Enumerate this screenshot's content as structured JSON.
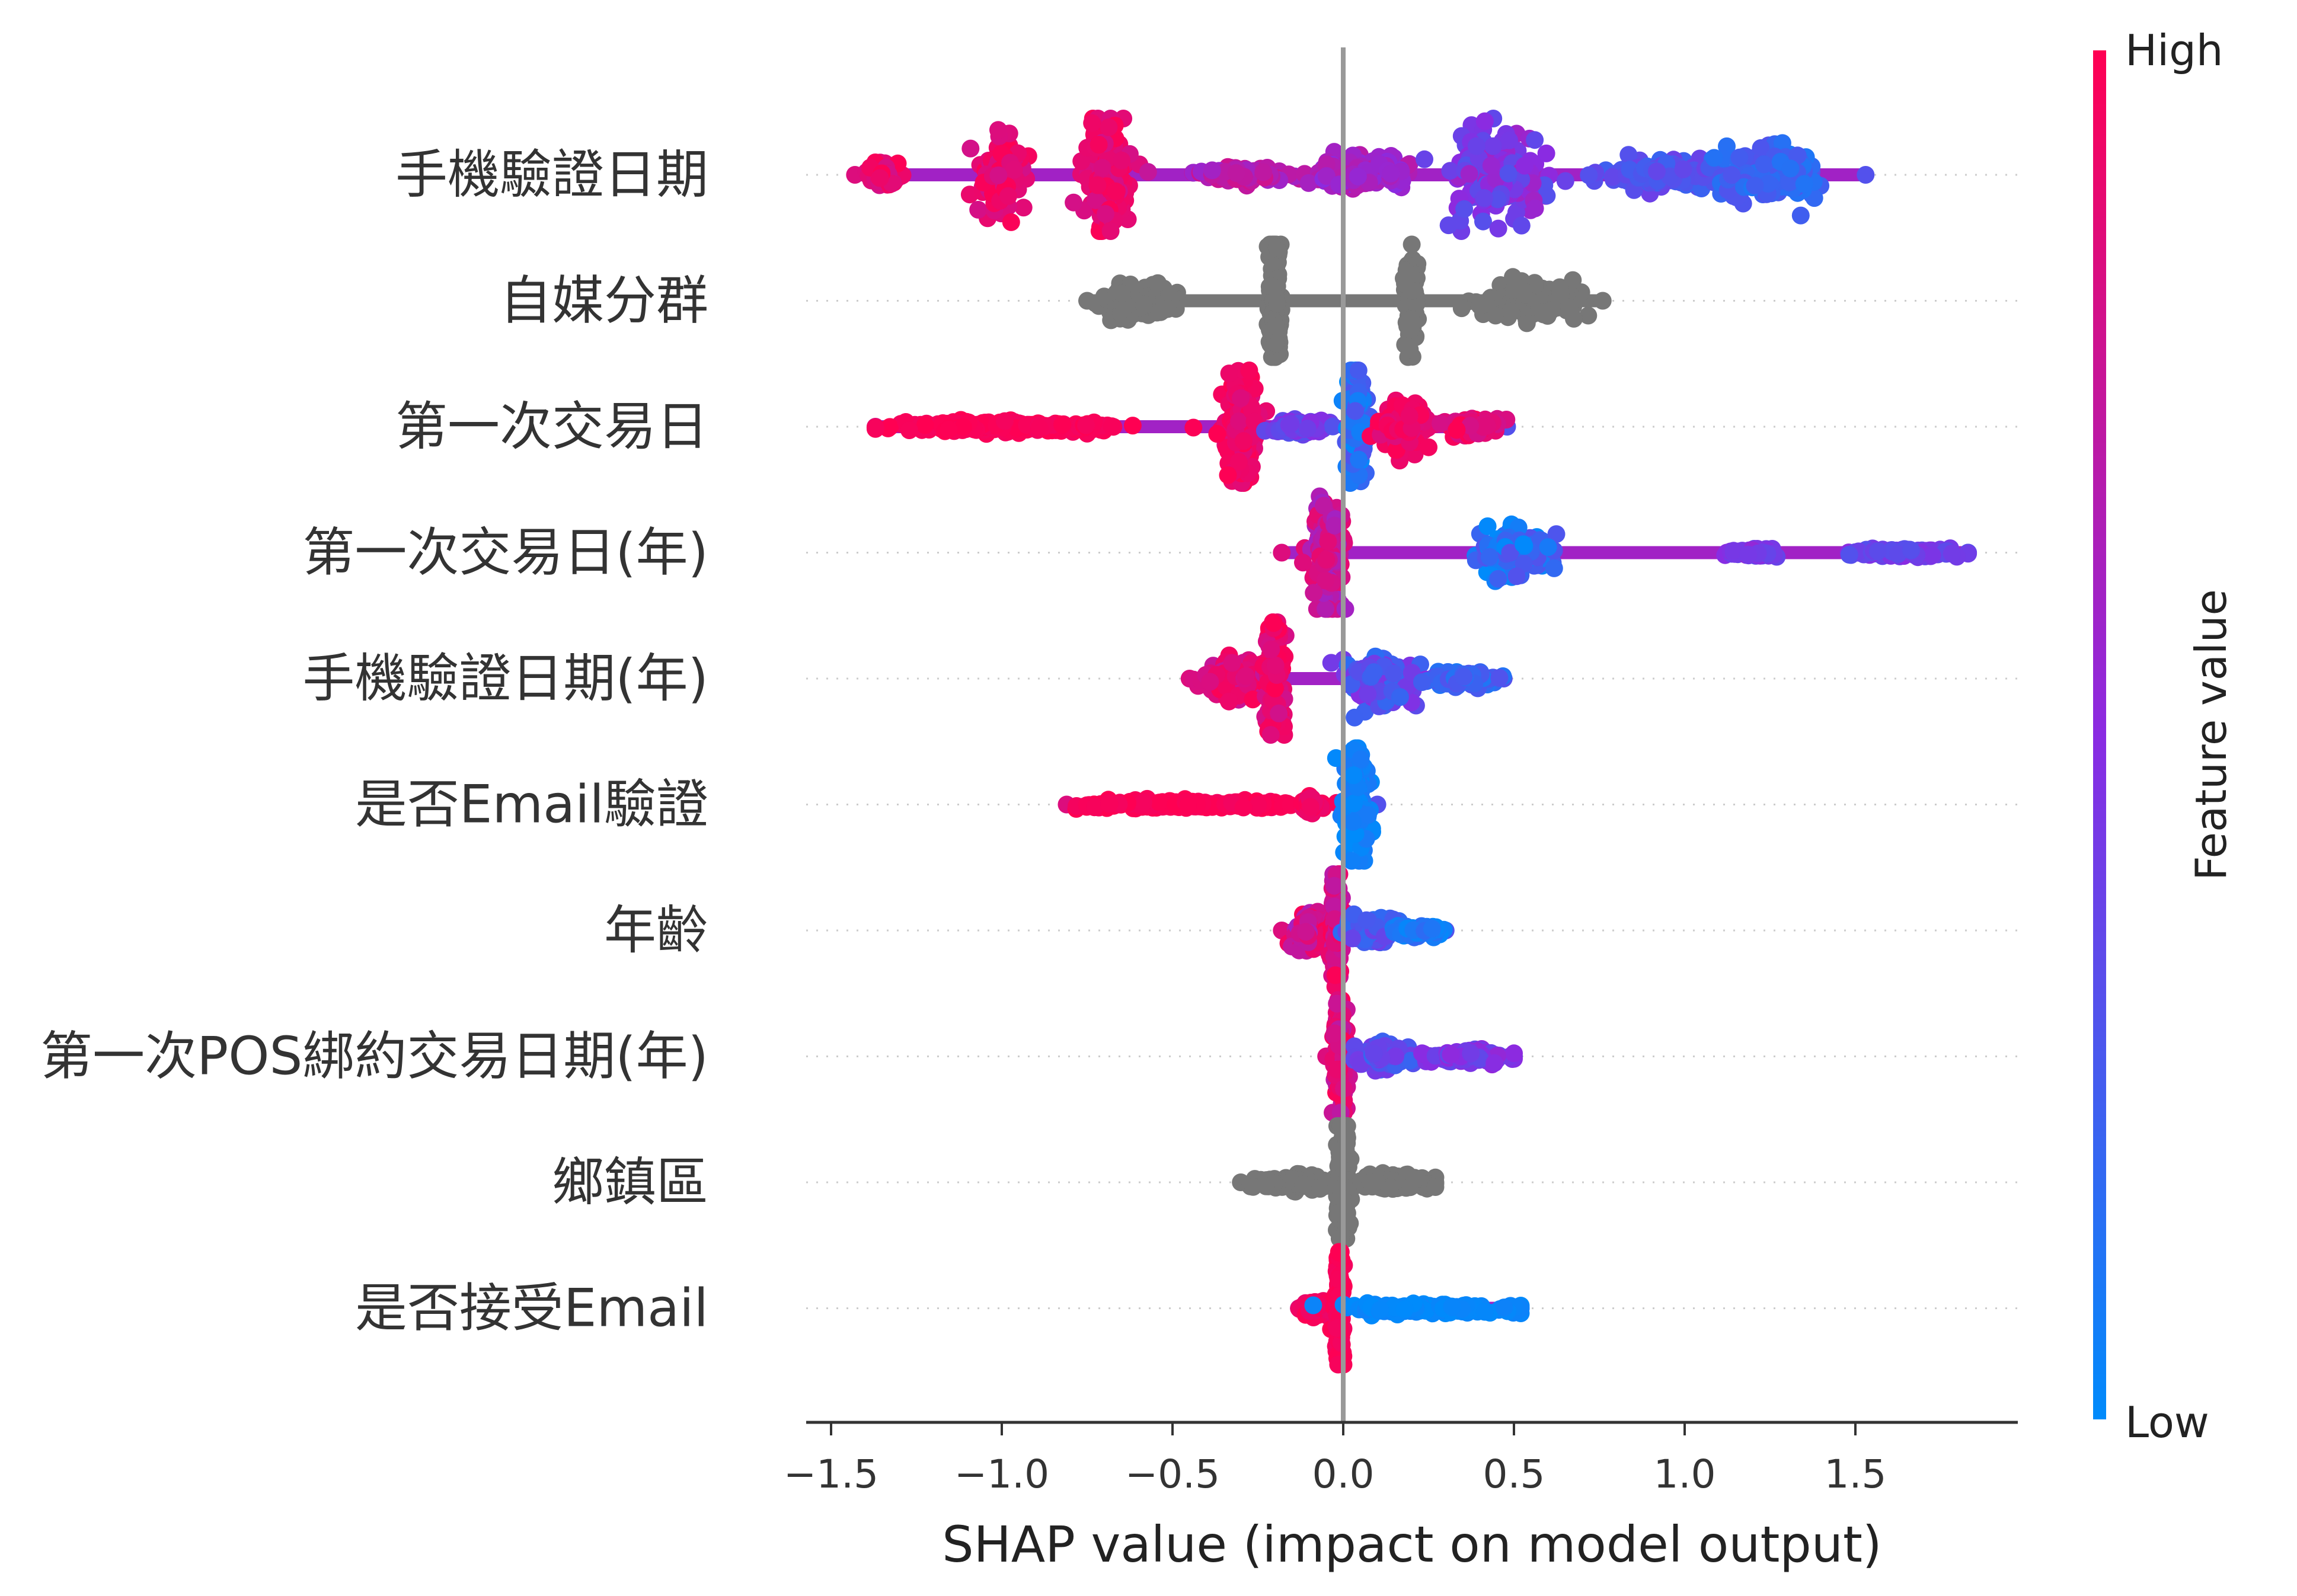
{
  "chart_data": {
    "type": "scatter",
    "subtype": "shap-beeswarm",
    "title": "",
    "xlabel": "SHAP value (impact on model output)",
    "xlim": [
      -1.58,
      1.97
    ],
    "xticks": [
      -1.5,
      -1.0,
      -0.5,
      0.0,
      0.5,
      1.0,
      1.5
    ],
    "xtick_labels": [
      "−1.5",
      "−1.0",
      "−0.5",
      "0.0",
      "0.5",
      "1.0",
      "1.5"
    ],
    "grid": false,
    "colors": {
      "high": "#ff0052",
      "mid": "#8a2be2",
      "low": "#008bfb",
      "uncolored": "#777777",
      "zero_line": "#999999"
    },
    "colorbar": {
      "title": "Feature value",
      "high_label": "High",
      "low_label": "Low"
    },
    "features": [
      {
        "name": "手機驗證日期",
        "min": -1.43,
        "max": 1.53,
        "colored": true,
        "clusters": [
          {
            "x": -1.35,
            "w": 0.05,
            "spread": 0.03,
            "lo": 0.8,
            "hi": 1.0
          },
          {
            "x": -1.0,
            "w": 0.06,
            "spread": 0.1,
            "lo": 0.8,
            "hi": 1.0
          },
          {
            "x": -0.7,
            "w": 0.07,
            "spread": 0.16,
            "lo": 0.8,
            "hi": 1.0
          },
          {
            "x": -0.3,
            "w": 0.15,
            "spread": 0.02,
            "lo": 0.55,
            "hi": 0.8
          },
          {
            "x": 0.05,
            "w": 0.15,
            "spread": 0.04,
            "lo": 0.5,
            "hi": 0.7
          },
          {
            "x": 0.45,
            "w": 0.15,
            "spread": 0.12,
            "lo": 0.3,
            "hi": 0.6
          },
          {
            "x": 0.95,
            "w": 0.2,
            "spread": 0.04,
            "lo": 0.2,
            "hi": 0.4
          },
          {
            "x": 1.25,
            "w": 0.15,
            "spread": 0.07,
            "lo": 0.1,
            "hi": 0.3
          }
        ]
      },
      {
        "name": "自媒分群",
        "min": -0.75,
        "max": 0.76,
        "colored": false,
        "clusters": [
          {
            "x": -0.6,
            "w": 0.12,
            "spread": 0.04
          },
          {
            "x": -0.2,
            "w": 0.02,
            "spread": 0.18
          },
          {
            "x": 0.2,
            "w": 0.02,
            "spread": 0.12
          },
          {
            "x": 0.55,
            "w": 0.15,
            "spread": 0.05
          }
        ]
      },
      {
        "name": "第一次交易日",
        "min": -1.37,
        "max": 0.48,
        "colored": true,
        "clusters": [
          {
            "x": -1.0,
            "w": 0.35,
            "spread": 0.015,
            "lo": 0.95,
            "hi": 1.0
          },
          {
            "x": -0.3,
            "w": 0.05,
            "spread": 0.16,
            "lo": 0.85,
            "hi": 1.0
          },
          {
            "x": -0.12,
            "w": 0.08,
            "spread": 0.02,
            "lo": 0.3,
            "hi": 0.5
          },
          {
            "x": 0.04,
            "w": 0.03,
            "spread": 0.16,
            "lo": 0.0,
            "hi": 0.3
          },
          {
            "x": 0.18,
            "w": 0.08,
            "spread": 0.06,
            "lo": 0.85,
            "hi": 1.0
          },
          {
            "x": 0.38,
            "w": 0.08,
            "spread": 0.02,
            "lo": 0.8,
            "hi": 1.0
          }
        ]
      },
      {
        "name": "第一次交易日(年)",
        "min": -0.18,
        "max": 1.83,
        "colored": true,
        "clusters": [
          {
            "x": -0.05,
            "w": 0.05,
            "spread": 0.16,
            "lo": 0.6,
            "hi": 0.9
          },
          {
            "x": 0.5,
            "w": 0.1,
            "spread": 0.06,
            "lo": 0.0,
            "hi": 0.3
          },
          {
            "x": 1.2,
            "w": 0.08,
            "spread": 0.01,
            "lo": 0.35,
            "hi": 0.55
          },
          {
            "x": 1.65,
            "w": 0.17,
            "spread": 0.01,
            "lo": 0.3,
            "hi": 0.5
          }
        ]
      },
      {
        "name": "手機驗證日期(年)",
        "min": -0.45,
        "max": 0.47,
        "colored": true,
        "clusters": [
          {
            "x": -0.3,
            "w": 0.12,
            "spread": 0.05,
            "lo": 0.75,
            "hi": 1.0
          },
          {
            "x": -0.2,
            "w": 0.03,
            "spread": 0.16,
            "lo": 0.8,
            "hi": 1.0
          },
          {
            "x": 0.1,
            "w": 0.1,
            "spread": 0.08,
            "lo": 0.15,
            "hi": 0.5
          },
          {
            "x": 0.35,
            "w": 0.1,
            "spread": 0.02,
            "lo": 0.1,
            "hi": 0.3
          }
        ]
      },
      {
        "name": "是否Email驗證",
        "min": -0.81,
        "max": 0.1,
        "colored": true,
        "clusters": [
          {
            "x": -0.45,
            "w": 0.35,
            "spread": 0.012,
            "lo": 0.95,
            "hi": 1.0
          },
          {
            "x": -0.1,
            "w": 0.02,
            "spread": 0.018,
            "lo": 0.9,
            "hi": 1.0
          },
          {
            "x": 0.04,
            "w": 0.04,
            "spread": 0.16,
            "lo": 0.0,
            "hi": 0.1
          }
        ]
      },
      {
        "name": "年齡",
        "min": -0.18,
        "max": 0.3,
        "colored": true,
        "clusters": [
          {
            "x": -0.08,
            "w": 0.08,
            "spread": 0.05,
            "lo": 0.6,
            "hi": 1.0
          },
          {
            "x": -0.02,
            "w": 0.015,
            "spread": 0.16,
            "lo": 0.7,
            "hi": 1.0
          },
          {
            "x": 0.08,
            "w": 0.08,
            "spread": 0.04,
            "lo": 0.15,
            "hi": 0.45
          },
          {
            "x": 0.22,
            "w": 0.08,
            "spread": 0.015,
            "lo": 0.0,
            "hi": 0.2
          }
        ]
      },
      {
        "name": "第一次POS綁約交易日期(年)",
        "min": -0.05,
        "max": 0.5,
        "colored": true,
        "clusters": [
          {
            "x": -0.01,
            "w": 0.02,
            "spread": 0.16,
            "lo": 0.7,
            "hi": 1.0
          },
          {
            "x": 0.12,
            "w": 0.08,
            "spread": 0.03,
            "lo": 0.2,
            "hi": 0.45
          },
          {
            "x": 0.38,
            "w": 0.12,
            "spread": 0.02,
            "lo": 0.35,
            "hi": 0.55
          }
        ]
      },
      {
        "name": "鄉鎮區",
        "min": -0.3,
        "max": 0.27,
        "colored": false,
        "clusters": [
          {
            "x": -0.15,
            "w": 0.12,
            "spread": 0.02
          },
          {
            "x": 0.0,
            "w": 0.02,
            "spread": 0.2
          },
          {
            "x": 0.15,
            "w": 0.12,
            "spread": 0.02
          }
        ]
      },
      {
        "name": "是否接受Email",
        "min": -0.13,
        "max": 0.52,
        "colored": true,
        "clusters": [
          {
            "x": -0.07,
            "w": 0.06,
            "spread": 0.02,
            "lo": 0.9,
            "hi": 1.0
          },
          {
            "x": -0.01,
            "w": 0.012,
            "spread": 0.16,
            "lo": 0.95,
            "hi": 1.0
          },
          {
            "x": 0.25,
            "w": 0.25,
            "spread": 0.015,
            "lo": 0.0,
            "hi": 0.05
          }
        ]
      }
    ]
  }
}
